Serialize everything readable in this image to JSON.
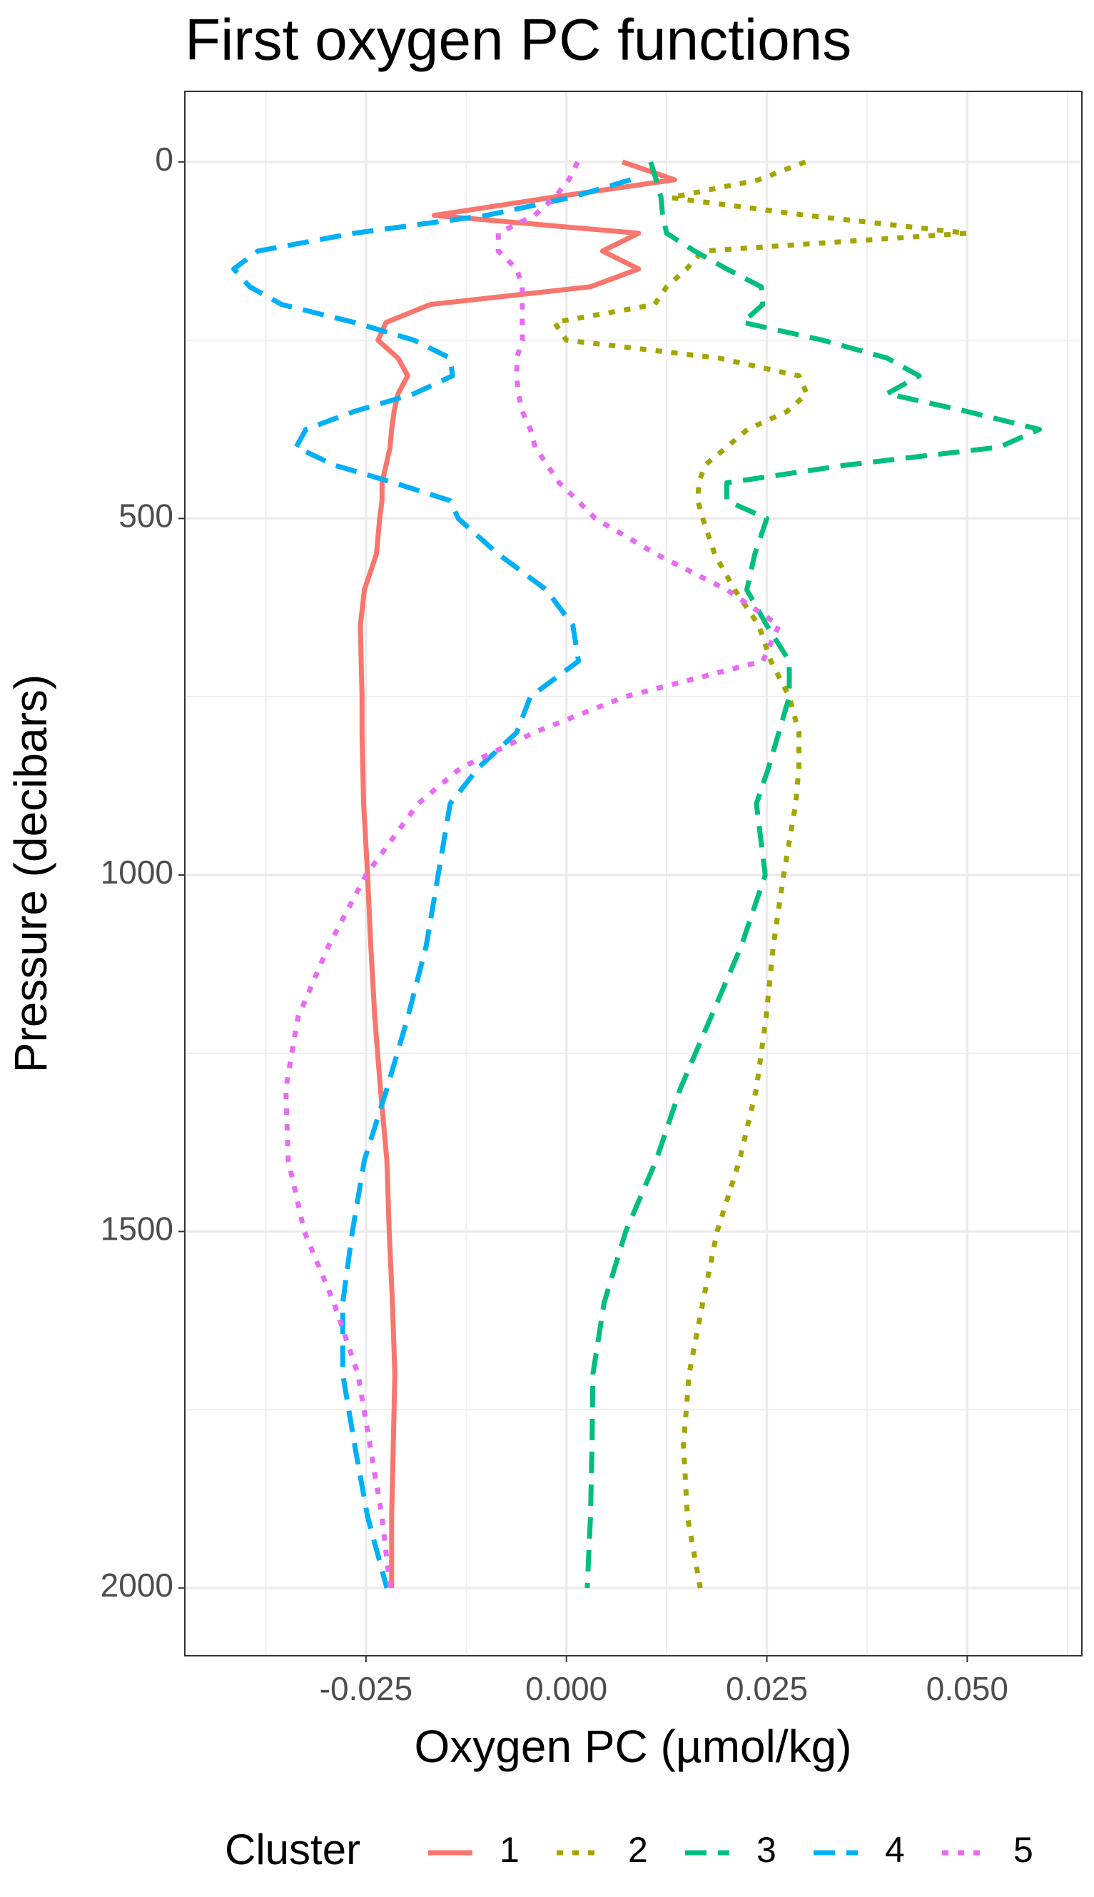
{
  "chart_data": {
    "type": "line",
    "title": "First oxygen PC functions",
    "x_label": "Oxygen PC (µmol/kg)",
    "y_label": "Pressure (decibars)",
    "xlim": [
      -0.0476,
      0.0643
    ],
    "ylim": [
      -99,
      2095
    ],
    "y_reversed": true,
    "xticks": [
      -0.025,
      {
        "value": 0,
        "label": "0.000"
      },
      0.025,
      {
        "value": 0.05,
        "label": "0.050"
      }
    ],
    "yticks": [
      0,
      500,
      1000,
      1500,
      2000
    ],
    "grid": true,
    "legend": "bottom",
    "legend_title": "Cluster",
    "y": [
      0,
      25,
      50,
      75,
      100,
      125,
      150,
      175,
      200,
      225,
      250,
      275,
      300,
      325,
      350,
      375,
      400,
      425,
      450,
      475,
      500,
      550,
      600,
      650,
      700,
      750,
      800,
      850,
      900,
      1000,
      1100,
      1200,
      1300,
      1400,
      1500,
      1600,
      1700,
      1800,
      1900,
      2000
    ],
    "series": [
      {
        "name": "1",
        "color": "#F8766D",
        "dash": "solid",
        "values": [
          0.007,
          0.0135,
          -0.002,
          -0.0165,
          0.009,
          0.0045,
          0.009,
          0.003,
          -0.017,
          -0.0225,
          -0.0235,
          -0.021,
          -0.0198,
          -0.021,
          -0.0215,
          -0.0218,
          -0.022,
          -0.0225,
          -0.023,
          -0.023,
          -0.0233,
          -0.0237,
          -0.0252,
          -0.0257,
          -0.0256,
          -0.0255,
          -0.0255,
          -0.0254,
          -0.0253,
          -0.0248,
          -0.0244,
          -0.0239,
          -0.0232,
          -0.0224,
          -0.0221,
          -0.0217,
          -0.0214,
          -0.0216,
          -0.0218,
          -0.0218
        ]
      },
      {
        "name": "2",
        "color": "#A3A500",
        "dash": "dotted",
        "values": [
          0.0298,
          0.024,
          0.013,
          0.03,
          0.05,
          0.017,
          0.015,
          0.0125,
          0.011,
          -0.0015,
          0.0,
          0.019,
          0.029,
          0.03,
          0.0275,
          0.0226,
          0.02,
          0.0173,
          0.0165,
          0.0164,
          0.017,
          0.0185,
          0.021,
          0.024,
          0.0255,
          0.0278,
          0.029,
          0.029,
          0.0286,
          0.0271,
          0.0258,
          0.0249,
          0.0237,
          0.0216,
          0.0188,
          0.017,
          0.0153,
          0.0146,
          0.0151,
          0.0167
        ]
      },
      {
        "name": "3",
        "color": "#00BF7D",
        "dash": "dashed",
        "values": [
          0.0105,
          0.0112,
          0.0118,
          0.012,
          0.0125,
          0.016,
          0.02,
          0.0243,
          0.0245,
          0.022,
          0.032,
          0.04,
          0.044,
          0.04,
          0.05,
          0.059,
          0.054,
          0.035,
          0.02,
          0.02,
          0.025,
          0.0235,
          0.0225,
          0.025,
          0.0278,
          0.0278,
          0.0265,
          0.0252,
          0.0237,
          0.0248,
          0.0218,
          0.018,
          0.0142,
          0.0112,
          0.0074,
          0.0047,
          0.0033,
          0.0032,
          0.003,
          0.0026
        ]
      },
      {
        "name": "4",
        "color": "#00B0F6",
        "dash": "dashed",
        "values": [
          null,
          0.008,
          0.0005,
          -0.01,
          -0.0265,
          -0.0385,
          -0.0415,
          -0.0395,
          -0.0355,
          -0.0265,
          -0.019,
          -0.0145,
          -0.0142,
          -0.019,
          -0.0265,
          -0.0325,
          -0.0337,
          -0.029,
          -0.0215,
          -0.0145,
          -0.0135,
          -0.0085,
          -0.0025,
          0.0008,
          0.0015,
          -0.0045,
          -0.0062,
          -0.011,
          -0.0145,
          -0.016,
          -0.0175,
          -0.0198,
          -0.0224,
          -0.0252,
          -0.0267,
          -0.0279,
          -0.0279,
          -0.0264,
          -0.0248,
          -0.0224
        ]
      },
      {
        "name": "5",
        "color": "#E76BF3",
        "dash": "dotted",
        "values": [
          0.0014,
          0.0003,
          -0.0015,
          -0.004,
          -0.0085,
          -0.0085,
          -0.0062,
          -0.0055,
          -0.0055,
          -0.0055,
          -0.0055,
          -0.0062,
          -0.0062,
          -0.006,
          -0.0055,
          -0.0045,
          -0.0039,
          -0.0024,
          -0.0009,
          0.0014,
          0.0036,
          0.0112,
          0.02,
          0.0265,
          0.0245,
          0.0073,
          -0.004,
          -0.0132,
          -0.0185,
          -0.025,
          -0.0297,
          -0.0335,
          -0.035,
          -0.0347,
          -0.0327,
          -0.029,
          -0.026,
          -0.0245,
          -0.023,
          -0.022
        ]
      }
    ]
  }
}
